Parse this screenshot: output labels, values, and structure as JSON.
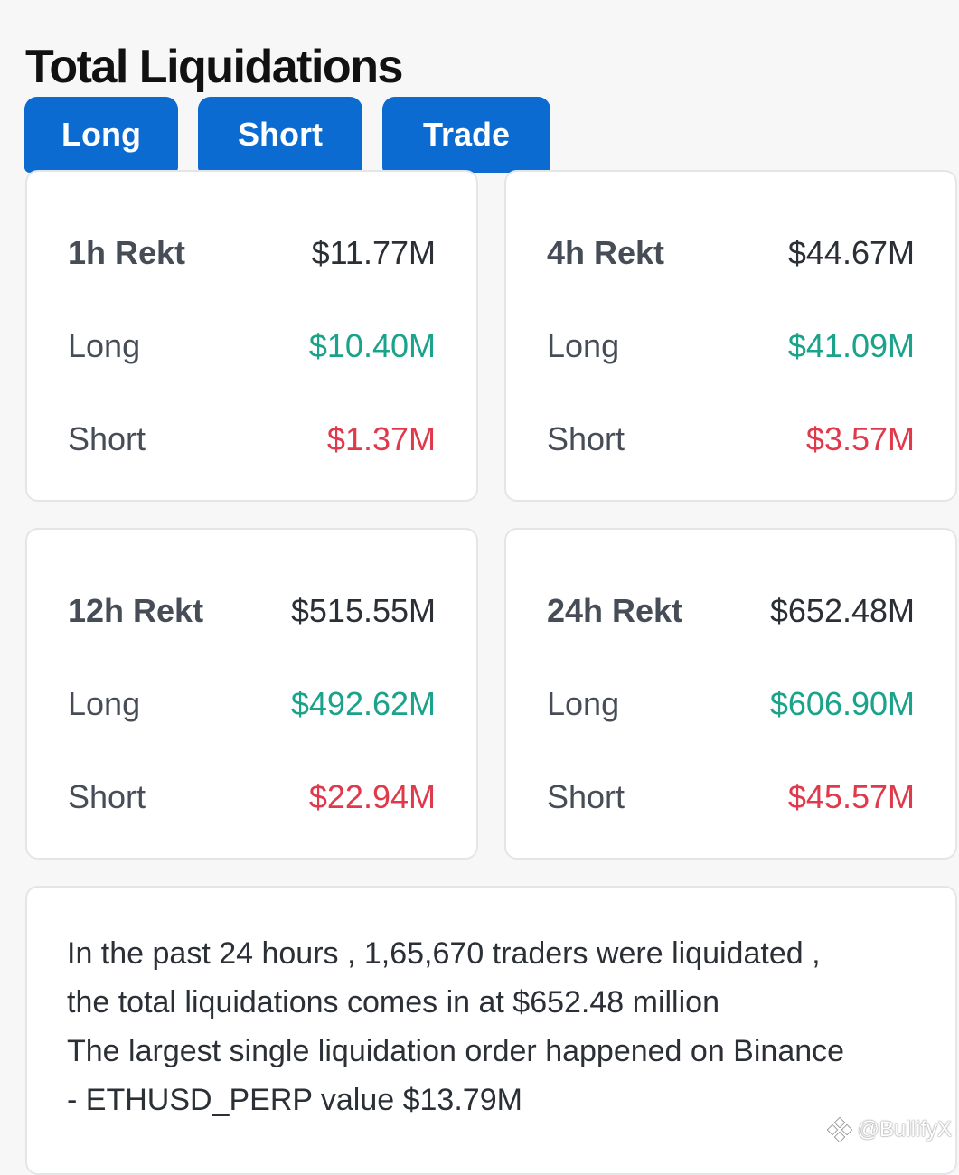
{
  "title": "Total Liquidations",
  "tabs": {
    "long": "Long",
    "short": "Short",
    "trade": "Trade"
  },
  "cards": [
    {
      "label": "1h Rekt",
      "total": "$11.77M",
      "long_label": "Long",
      "long": "$10.40M",
      "short_label": "Short",
      "short": "$1.37M"
    },
    {
      "label": "4h Rekt",
      "total": "$44.67M",
      "long_label": "Long",
      "long": "$41.09M",
      "short_label": "Short",
      "short": "$3.57M"
    },
    {
      "label": "12h Rekt",
      "total": "$515.55M",
      "long_label": "Long",
      "long": "$492.62M",
      "short_label": "Short",
      "short": "$22.94M"
    },
    {
      "label": "24h Rekt",
      "total": "$652.48M",
      "long_label": "Long",
      "long": "$606.90M",
      "short_label": "Short",
      "short": "$45.57M"
    }
  ],
  "summary": {
    "line1": "In the past 24 hours , 1,65,670 traders were liquidated ,",
    "line2": "the total liquidations comes in at $652.48 million",
    "line3": "The largest single liquidation order happened on Binance",
    "line4": "- ETHUSD_PERP value $13.79M"
  },
  "watermark": {
    "text": "@BullifyX",
    "icon": "binance-logo-icon"
  },
  "colors": {
    "tab_blue": "#0b6bd1",
    "long_green": "#1aa38a",
    "short_red": "#e0394c"
  }
}
